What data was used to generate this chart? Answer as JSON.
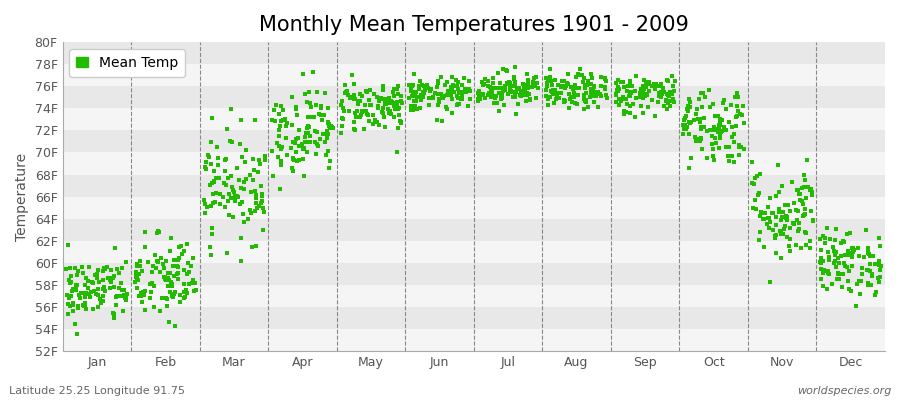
{
  "title": "Monthly Mean Temperatures 1901 - 2009",
  "ylabel": "Temperature",
  "bottom_left_text": "Latitude 25.25 Longitude 91.75",
  "bottom_right_text": "worldspecies.org",
  "legend_label": "Mean Temp",
  "months": [
    "Jan",
    "Feb",
    "Mar",
    "Apr",
    "May",
    "Jun",
    "Jul",
    "Aug",
    "Sep",
    "Oct",
    "Nov",
    "Dec"
  ],
  "month_centers": [
    0.5,
    1.5,
    2.5,
    3.5,
    4.5,
    5.5,
    6.5,
    7.5,
    8.5,
    9.5,
    10.5,
    11.5
  ],
  "ylim": [
    52,
    80
  ],
  "yticks": [
    52,
    54,
    56,
    58,
    60,
    62,
    64,
    66,
    68,
    70,
    72,
    74,
    76,
    78,
    80
  ],
  "xlim": [
    0,
    12
  ],
  "dot_color": "#22bb00",
  "dot_size": 6,
  "background_color": "#ffffff",
  "plot_bg_color": "#ffffff",
  "band_color_light": "#f0f0f0",
  "band_color_dark": "#e0e0e0",
  "vline_color": "#888888",
  "title_fontsize": 15,
  "label_fontsize": 10,
  "tick_fontsize": 9,
  "monthly_means_F": [
    57.5,
    58.5,
    67.0,
    72.0,
    74.2,
    75.2,
    75.8,
    75.5,
    75.3,
    72.5,
    64.5,
    60.0
  ],
  "monthly_stds_F": [
    1.5,
    2.0,
    2.5,
    2.0,
    1.2,
    0.8,
    0.8,
    0.8,
    0.9,
    1.8,
    2.2,
    1.5
  ],
  "n_years": 109,
  "seed": 42
}
